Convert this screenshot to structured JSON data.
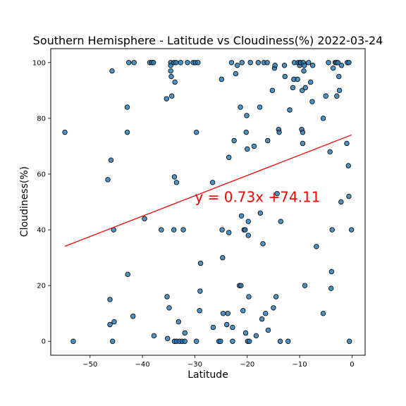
{
  "chart_data": {
    "type": "scatter",
    "title": "Southern Hemisphere - Latitude vs Cloudiness(%) 2022-03-24",
    "xlabel": "Latitude",
    "ylabel": "Cloudiness(%)",
    "xlim": [
      -57.5,
      2.5
    ],
    "ylim": [
      -5,
      105
    ],
    "xticks": [
      -50,
      -40,
      -30,
      -20,
      -10,
      0
    ],
    "yticks": [
      0,
      20,
      40,
      60,
      80,
      100
    ],
    "grid": false,
    "point_color": "#1f77b4",
    "point_edge_color": "#000000",
    "regression": {
      "equation_label": "y = 0.73x +74.11",
      "slope": 0.73,
      "intercept": 74.11,
      "x_range": [
        -54.8,
        -0.1
      ],
      "color": "#ff0000",
      "label_position": [
        -30,
        50
      ]
    },
    "points": [
      [
        -54.8,
        75
      ],
      [
        -53.2,
        0
      ],
      [
        -46.6,
        58
      ],
      [
        -46.2,
        6
      ],
      [
        -46.2,
        15
      ],
      [
        -46.0,
        65
      ],
      [
        -45.8,
        97
      ],
      [
        -45.7,
        0
      ],
      [
        -45.5,
        40
      ],
      [
        -45.4,
        7
      ],
      [
        -42.9,
        84
      ],
      [
        -42.9,
        75
      ],
      [
        -42.8,
        24
      ],
      [
        -42.6,
        100
      ],
      [
        -41.8,
        9
      ],
      [
        -41.6,
        100
      ],
      [
        -39.6,
        44
      ],
      [
        -38.6,
        100
      ],
      [
        -38.2,
        100
      ],
      [
        -37.9,
        100
      ],
      [
        -37.8,
        2
      ],
      [
        -36.4,
        40
      ],
      [
        -35.4,
        87
      ],
      [
        -35.3,
        16
      ],
      [
        -35.2,
        1
      ],
      [
        -34.9,
        12
      ],
      [
        -34.6,
        100
      ],
      [
        -34.6,
        97
      ],
      [
        -34.6,
        99
      ],
      [
        -34.5,
        95
      ],
      [
        -34.4,
        88
      ],
      [
        -34.0,
        100
      ],
      [
        -34.0,
        40
      ],
      [
        -33.9,
        59
      ],
      [
        -33.9,
        0
      ],
      [
        -33.8,
        93
      ],
      [
        -33.6,
        100
      ],
      [
        -33.5,
        57
      ],
      [
        -33.5,
        0
      ],
      [
        -33.1,
        7
      ],
      [
        -32.9,
        0
      ],
      [
        -32.7,
        100
      ],
      [
        -32.4,
        0
      ],
      [
        -32.2,
        40
      ],
      [
        -31.9,
        0
      ],
      [
        -31.9,
        3
      ],
      [
        -31.4,
        100
      ],
      [
        -30.3,
        100
      ],
      [
        -29.9,
        100
      ],
      [
        -29.7,
        0
      ],
      [
        -29.7,
        75
      ],
      [
        -29.4,
        100
      ],
      [
        -29.1,
        11
      ],
      [
        -29.0,
        18
      ],
      [
        -28.9,
        28
      ],
      [
        -26.6,
        57
      ],
      [
        -26.5,
        5
      ],
      [
        -25.4,
        0
      ],
      [
        -25.1,
        0
      ],
      [
        -24.9,
        94
      ],
      [
        -24.8,
        40
      ],
      [
        -24.7,
        30
      ],
      [
        -24.6,
        10
      ],
      [
        -23.9,
        6
      ],
      [
        -23.7,
        10
      ],
      [
        -23.5,
        66
      ],
      [
        -23.5,
        39
      ],
      [
        -23.0,
        100
      ],
      [
        -22.8,
        0
      ],
      [
        -22.8,
        5
      ],
      [
        -22.5,
        72
      ],
      [
        -22.2,
        96
      ],
      [
        -21.9,
        99
      ],
      [
        -21.5,
        20
      ],
      [
        -21.3,
        84
      ],
      [
        -21.2,
        20
      ],
      [
        -21.1,
        45
      ],
      [
        -21.0,
        100
      ],
      [
        -20.8,
        11
      ],
      [
        -20.6,
        40
      ],
      [
        -20.4,
        40
      ],
      [
        -20.3,
        3
      ],
      [
        -20.2,
        75
      ],
      [
        -20.1,
        81
      ],
      [
        -20.0,
        69
      ],
      [
        -19.9,
        0
      ],
      [
        -19.8,
        43
      ],
      [
        -19.8,
        38
      ],
      [
        -19.7,
        16
      ],
      [
        -19.6,
        0
      ],
      [
        -19.4,
        100
      ],
      [
        -18.7,
        70
      ],
      [
        -18.3,
        2
      ],
      [
        -17.9,
        100
      ],
      [
        -17.6,
        84
      ],
      [
        -17.5,
        46
      ],
      [
        -17.2,
        8
      ],
      [
        -17.0,
        35
      ],
      [
        -16.8,
        100
      ],
      [
        -16.5,
        10
      ],
      [
        -16.2,
        100
      ],
      [
        -16.1,
        72
      ],
      [
        -16.0,
        4
      ],
      [
        -15.2,
        90
      ],
      [
        -15.0,
        12
      ],
      [
        -14.8,
        98
      ],
      [
        -14.7,
        99
      ],
      [
        -14.5,
        16
      ],
      [
        -14.3,
        53
      ],
      [
        -14.0,
        76
      ],
      [
        -13.9,
        75
      ],
      [
        -13.7,
        0
      ],
      [
        -13.6,
        43
      ],
      [
        -12.9,
        99
      ],
      [
        -12.8,
        95
      ],
      [
        -12.2,
        0
      ],
      [
        -11.9,
        83
      ],
      [
        -11.3,
        91
      ],
      [
        -11.1,
        94
      ],
      [
        -11.0,
        100
      ],
      [
        -10.4,
        94
      ],
      [
        -10.3,
        100
      ],
      [
        -10.0,
        99
      ],
      [
        -9.9,
        100
      ],
      [
        -9.8,
        100
      ],
      [
        -9.6,
        76
      ],
      [
        -9.5,
        90
      ],
      [
        -9.4,
        75
      ],
      [
        -9.4,
        71
      ],
      [
        -9.3,
        100
      ],
      [
        -9.2,
        97
      ],
      [
        -9.1,
        99
      ],
      [
        -9.0,
        20
      ],
      [
        -8.9,
        91
      ],
      [
        -8.3,
        100
      ],
      [
        -7.9,
        93
      ],
      [
        -7.6,
        86
      ],
      [
        -7.5,
        99
      ],
      [
        -6.8,
        34
      ],
      [
        -5.5,
        80
      ],
      [
        -5.5,
        10
      ],
      [
        -5.0,
        88
      ],
      [
        -4.5,
        100
      ],
      [
        -4.2,
        68
      ],
      [
        -4.0,
        19
      ],
      [
        -3.9,
        25
      ],
      [
        -3.8,
        40
      ],
      [
        -3.6,
        98
      ],
      [
        -3.2,
        100
      ],
      [
        -3.0,
        100
      ],
      [
        -2.9,
        88
      ],
      [
        -2.7,
        100
      ],
      [
        -2.5,
        95
      ],
      [
        -2.4,
        90
      ],
      [
        -2.1,
        50
      ],
      [
        -2.0,
        99
      ],
      [
        -1.0,
        71
      ],
      [
        -0.9,
        100
      ],
      [
        -0.7,
        63
      ],
      [
        -0.6,
        52
      ],
      [
        -0.6,
        100
      ],
      [
        -0.5,
        0
      ],
      [
        -0.1,
        40
      ]
    ]
  }
}
